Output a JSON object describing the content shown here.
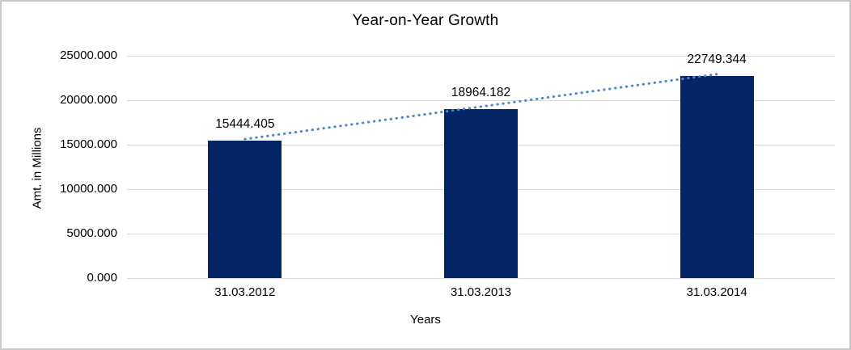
{
  "chart_data": {
    "type": "bar",
    "title": "Year-on-Year Growth",
    "xlabel": "Years",
    "ylabel": "Amt. in Millions",
    "categories": [
      "31.03.2012",
      "31.03.2013",
      "31.03.2014"
    ],
    "values": [
      15444.405,
      18964.182,
      22749.344
    ],
    "data_labels": [
      "15444.405",
      "18964.182",
      "22749.344"
    ],
    "ylim": [
      0,
      25000
    ],
    "ytick_step": 5000,
    "ytick_labels": [
      "0.000",
      "5000.000",
      "10000.000",
      "15000.000",
      "20000.000",
      "25000.000"
    ],
    "grid": true,
    "legend_position": "none",
    "trendline": {
      "type": "linear",
      "style": "dotted"
    }
  },
  "colors": {
    "bar": "#032465",
    "trendline": "#4f87c7",
    "gridline": "#d9d9d9",
    "frame_border": "#c9c9c9",
    "text": "#000000",
    "background": "#ffffff"
  }
}
